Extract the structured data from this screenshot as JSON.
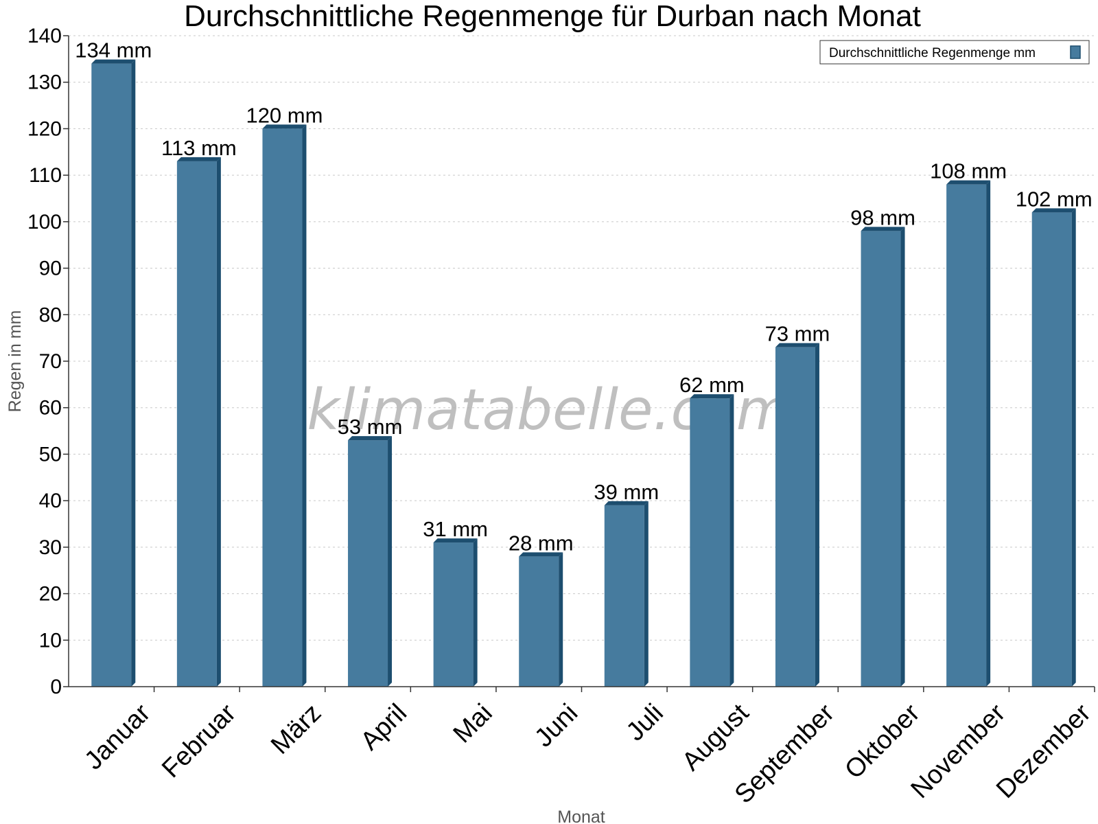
{
  "chart_data": {
    "type": "bar",
    "title": "Durchschnittliche Regenmenge für Durban nach Monat",
    "xlabel": "Monat",
    "ylabel": "Regen in mm",
    "ylim": [
      0,
      140
    ],
    "ytick_step": 10,
    "grid": true,
    "legend_position": "top-right",
    "categories": [
      "Januar",
      "Februar",
      "März",
      "April",
      "Mai",
      "Juni",
      "Juli",
      "August",
      "September",
      "Oktober",
      "November",
      "Dezember"
    ],
    "series": [
      {
        "name": "Durchschnittliche Regenmenge mm",
        "values": [
          134,
          113,
          120,
          53,
          31,
          28,
          39,
          62,
          73,
          98,
          108,
          102
        ],
        "labels": [
          "134 mm",
          "113 mm",
          "120 mm",
          "53 mm",
          "31 mm",
          "28 mm",
          "39 mm",
          "62 mm",
          "73 mm",
          "98 mm",
          "108 mm",
          "102 mm"
        ],
        "color": "#467b9e",
        "color_dark": "#1d4e6f"
      }
    ]
  },
  "watermark": "klimatabelle.com"
}
